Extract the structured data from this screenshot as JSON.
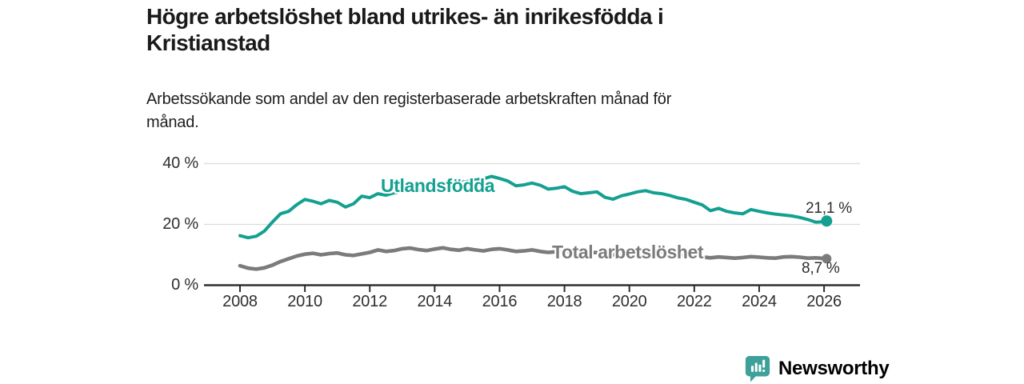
{
  "header": {
    "title_lines": [
      "Högre arbetslöshet bland utrikes- än inrikesfödda i",
      "Kristianstad"
    ],
    "subtitle_lines": [
      "Arbetssökande som andel av den registerbaserade arbetskraften månad för",
      "månad."
    ]
  },
  "chart_data": {
    "type": "line",
    "title": "Högre arbetslöshet bland utrikes- än inrikesfödda i Kristianstad",
    "subtitle": "Arbetssökande som andel av den registerbaserade arbetskraften månad för månad.",
    "grid": "horizontal",
    "legend_position": "inline-labels",
    "x_axis": {
      "min": 2006.9,
      "max": 2027.0,
      "ticks": [
        {
          "value": 2008,
          "label": "2008"
        },
        {
          "value": 2010,
          "label": "2010"
        },
        {
          "value": 2012,
          "label": "2012"
        },
        {
          "value": 2014,
          "label": "2014"
        },
        {
          "value": 2016,
          "label": "2016"
        },
        {
          "value": 2018,
          "label": "2018"
        },
        {
          "value": 2020,
          "label": "2020"
        },
        {
          "value": 2022,
          "label": "2022"
        },
        {
          "value": 2024,
          "label": "2024"
        },
        {
          "value": 2026,
          "label": "2026"
        }
      ]
    },
    "y_axis": {
      "min": 0,
      "max": 42,
      "unit": "%",
      "ticks": [
        {
          "value": 0,
          "label": "0 %"
        },
        {
          "value": 20,
          "label": "20 %"
        },
        {
          "value": 40,
          "label": "40 %"
        }
      ]
    },
    "x": [
      2008.0,
      2008.25,
      2008.5,
      2008.75,
      2009.0,
      2009.25,
      2009.5,
      2009.75,
      2010.0,
      2010.25,
      2010.5,
      2010.75,
      2011.0,
      2011.25,
      2011.5,
      2011.75,
      2012.0,
      2012.25,
      2012.5,
      2012.75,
      2013.0,
      2013.25,
      2013.5,
      2013.75,
      2014.0,
      2014.25,
      2014.5,
      2014.75,
      2015.0,
      2015.25,
      2015.5,
      2015.75,
      2016.0,
      2016.25,
      2016.5,
      2016.75,
      2017.0,
      2017.25,
      2017.5,
      2017.75,
      2018.0,
      2018.25,
      2018.5,
      2018.75,
      2019.0,
      2019.25,
      2019.5,
      2019.75,
      2020.0,
      2020.25,
      2020.5,
      2020.75,
      2021.0,
      2021.25,
      2021.5,
      2021.75,
      2022.0,
      2022.25,
      2022.5,
      2022.75,
      2023.0,
      2023.25,
      2023.5,
      2023.75,
      2024.0,
      2024.25,
      2024.5,
      2024.75,
      2025.0,
      2025.25,
      2025.5,
      2025.75,
      2026.0,
      2026.08
    ],
    "series": [
      {
        "name": "Utlandsfödda",
        "color": "#14a090",
        "end_label": "21,1 %",
        "end_value": 21.1,
        "values": [
          16.3,
          15.6,
          16.1,
          17.8,
          20.8,
          23.5,
          24.3,
          26.5,
          28.2,
          27.6,
          26.8,
          27.9,
          27.3,
          25.7,
          26.8,
          29.3,
          28.8,
          30.1,
          29.6,
          30.4,
          30.9,
          31.4,
          31.1,
          31.9,
          32.4,
          33.0,
          33.4,
          33.8,
          34.1,
          34.6,
          35.0,
          35.8,
          35.1,
          34.3,
          32.7,
          33.0,
          33.6,
          32.9,
          31.6,
          31.9,
          32.4,
          30.9,
          30.1,
          30.4,
          30.7,
          28.9,
          28.3,
          29.4,
          30.0,
          30.7,
          31.1,
          30.4,
          30.1,
          29.5,
          28.7,
          28.2,
          27.3,
          26.4,
          24.5,
          25.3,
          24.3,
          23.8,
          23.5,
          24.9,
          24.3,
          23.8,
          23.4,
          23.1,
          22.8,
          22.3,
          21.6,
          20.7,
          20.9,
          21.1
        ]
      },
      {
        "name": "Total arbetslöshet",
        "color": "#7b7b7b",
        "end_label": "8,7 %",
        "end_value": 8.7,
        "values": [
          6.4,
          5.6,
          5.3,
          5.7,
          6.6,
          7.8,
          8.7,
          9.6,
          10.2,
          10.5,
          10.0,
          10.4,
          10.6,
          10.0,
          9.8,
          10.3,
          10.8,
          11.6,
          11.1,
          11.4,
          12.0,
          12.2,
          11.7,
          11.4,
          11.9,
          12.3,
          11.8,
          11.5,
          12.0,
          11.6,
          11.3,
          11.8,
          12.0,
          11.6,
          11.1,
          11.3,
          11.6,
          11.1,
          10.8,
          11.0,
          11.2,
          10.7,
          10.3,
          10.6,
          10.8,
          10.3,
          10.0,
          10.4,
          10.8,
          11.4,
          11.6,
          11.2,
          11.0,
          10.5,
          10.1,
          9.8,
          9.6,
          9.3,
          9.0,
          9.3,
          9.1,
          8.9,
          9.1,
          9.4,
          9.2,
          9.0,
          8.9,
          9.3,
          9.4,
          9.2,
          8.9,
          9.0,
          8.8,
          8.7
        ]
      }
    ],
    "colors": {
      "axis": "#2e2e2e",
      "gridline": "#dcdcdc",
      "tick_text": "#2e2e2e"
    }
  },
  "footer": {
    "brand": "Newsworthy",
    "brand_color": "#2f9e92",
    "logo_color": "#3da199"
  }
}
